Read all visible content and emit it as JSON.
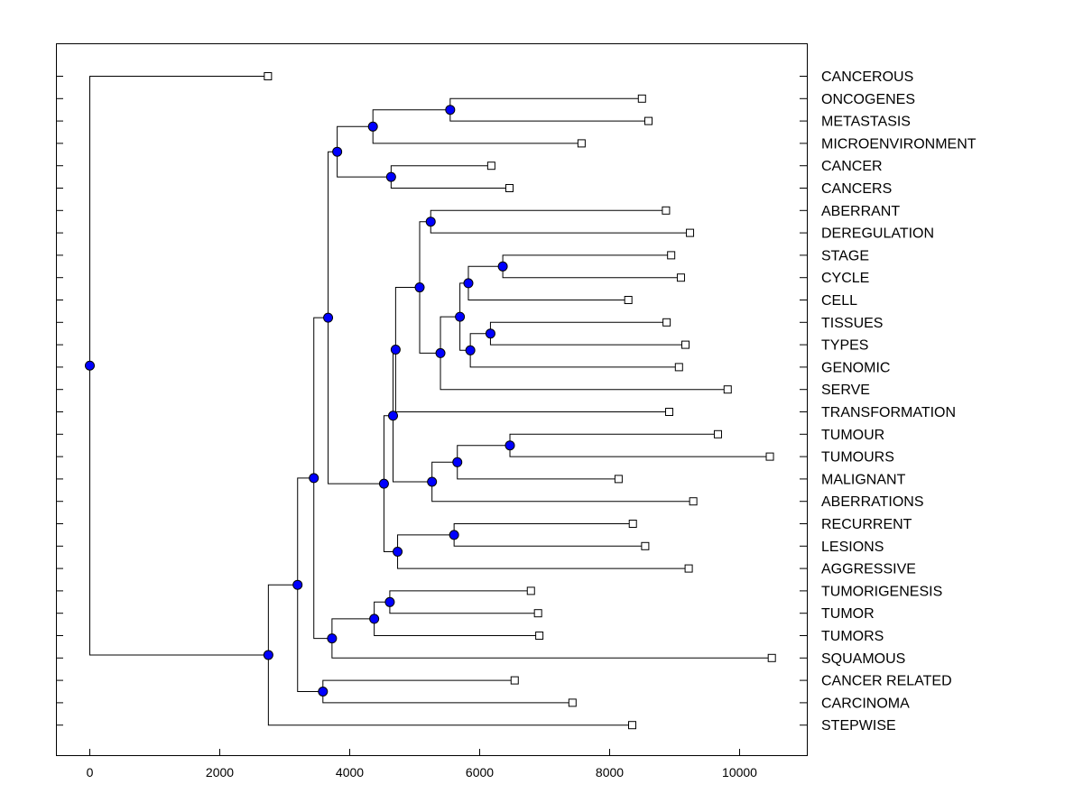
{
  "chart_data": {
    "type": "dendrogram",
    "x_ticks": [
      0,
      2000,
      4000,
      6000,
      8000,
      10000
    ],
    "xlim": [
      -500,
      11000
    ],
    "leaves": [
      {
        "label": "CANCEROUS",
        "x": 2750
      },
      {
        "label": "ONCOGENES",
        "x": 8510
      },
      {
        "label": "METASTASIS",
        "x": 8610
      },
      {
        "label": "MICROENVIRONMENT",
        "x": 7580
      },
      {
        "label": "CANCER",
        "x": 6190
      },
      {
        "label": "CANCERS",
        "x": 6470
      },
      {
        "label": "ABERRANT",
        "x": 8880
      },
      {
        "label": "DEREGULATION",
        "x": 9250
      },
      {
        "label": "STAGE",
        "x": 8960
      },
      {
        "label": "CYCLE",
        "x": 9110
      },
      {
        "label": "CELL",
        "x": 8300
      },
      {
        "label": "TISSUES",
        "x": 8890
      },
      {
        "label": "TYPES",
        "x": 9180
      },
      {
        "label": "GENOMIC",
        "x": 9080
      },
      {
        "label": "SERVE",
        "x": 9830
      },
      {
        "label": "TRANSFORMATION",
        "x": 8930
      },
      {
        "label": "TUMOUR",
        "x": 9680
      },
      {
        "label": "TUMOURS",
        "x": 10480
      },
      {
        "label": "MALIGNANT",
        "x": 8150
      },
      {
        "label": "ABERRATIONS",
        "x": 9300
      },
      {
        "label": "RECURRENT",
        "x": 8370
      },
      {
        "label": "LESIONS",
        "x": 8560
      },
      {
        "label": "AGGRESSIVE",
        "x": 9230
      },
      {
        "label": "TUMORIGENESIS",
        "x": 6800
      },
      {
        "label": "TUMOR",
        "x": 6910
      },
      {
        "label": "TUMORS",
        "x": 6930
      },
      {
        "label": "SQUAMOUS",
        "x": 10510
      },
      {
        "label": "CANCER RELATED",
        "x": 6550
      },
      {
        "label": "CARCINOMA",
        "x": 7440
      },
      {
        "label": "STEPWISE",
        "x": 8360
      }
    ],
    "merges": [
      {
        "x": 5550,
        "children": [
          "L1",
          "L2"
        ]
      },
      {
        "x": 4360,
        "children": [
          "M0",
          "L3"
        ]
      },
      {
        "x": 4640,
        "children": [
          "L4",
          "L5"
        ]
      },
      {
        "x": 3810,
        "children": [
          "M1",
          "M2"
        ]
      },
      {
        "x": 5250,
        "children": [
          "L6",
          "L7"
        ]
      },
      {
        "x": 6360,
        "children": [
          "L8",
          "L9"
        ]
      },
      {
        "x": 5830,
        "children": [
          "M5",
          "L10"
        ]
      },
      {
        "x": 6170,
        "children": [
          "L11",
          "L12"
        ]
      },
      {
        "x": 5860,
        "children": [
          "M7",
          "L13"
        ]
      },
      {
        "x": 5700,
        "children": [
          "M6",
          "M8"
        ]
      },
      {
        "x": 5400,
        "children": [
          "M9",
          "L14"
        ]
      },
      {
        "x": 5080,
        "children": [
          "M4",
          "M10"
        ]
      },
      {
        "x": 4710,
        "children": [
          "M11",
          "L15"
        ]
      },
      {
        "x": 6470,
        "children": [
          "L16",
          "L17"
        ]
      },
      {
        "x": 5660,
        "children": [
          "M13",
          "L18"
        ]
      },
      {
        "x": 5270,
        "children": [
          "M14",
          "L19"
        ]
      },
      {
        "x": 4670,
        "children": [
          "M12",
          "M15"
        ]
      },
      {
        "x": 5610,
        "children": [
          "L20",
          "L21"
        ]
      },
      {
        "x": 4740,
        "children": [
          "M17",
          "L22"
        ]
      },
      {
        "x": 4530,
        "children": [
          "M16",
          "M18"
        ]
      },
      {
        "x": 3670,
        "children": [
          "M3",
          "M19"
        ]
      },
      {
        "x": 4620,
        "children": [
          "L23",
          "L24"
        ]
      },
      {
        "x": 4380,
        "children": [
          "M21",
          "L25"
        ]
      },
      {
        "x": 3730,
        "children": [
          "M22",
          "L26"
        ]
      },
      {
        "x": 3450,
        "children": [
          "M20",
          "M23"
        ]
      },
      {
        "x": 3590,
        "children": [
          "L27",
          "L28"
        ]
      },
      {
        "x": 3200,
        "children": [
          "M24",
          "M25"
        ]
      },
      {
        "x": 2750,
        "children": [
          "M26",
          "L29"
        ]
      },
      {
        "x": 0,
        "children": [
          "L0",
          "M27"
        ]
      }
    ]
  }
}
